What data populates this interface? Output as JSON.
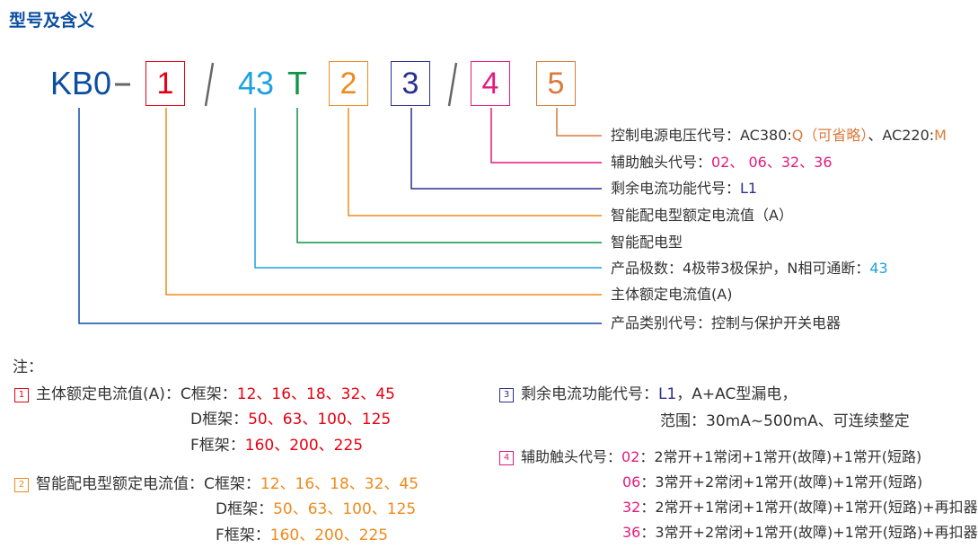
{
  "title": "型号及含义",
  "colors": {
    "blue": "#0b4ea2",
    "red": "#e60012",
    "cyan": "#1ea1e0",
    "green": "#0d9447",
    "orange": "#f08a1c",
    "navy": "#2b2f8e",
    "pink": "#e4197f",
    "brown": "#d97a3a",
    "text": "#333333"
  },
  "model": {
    "prefix": "KB0",
    "dash": "-",
    "slash": "/",
    "poles": "43",
    "type": "T",
    "box1": "1",
    "box2": "2",
    "box3": "3",
    "box4": "4",
    "box5": "5"
  },
  "descriptions": {
    "d5": {
      "label": "控制电源电压代号：AC380:",
      "q": "Q（可省略）",
      "mid": "、AC220:",
      "m": "M"
    },
    "d4": {
      "label": "辅助触头代号：",
      "values": "02、 06、32、36"
    },
    "d3": {
      "label": "剩余电流功能代号：",
      "value": "L1"
    },
    "d2": "智能配电型额定电流值（A）",
    "dT": "智能配电型",
    "d43": {
      "label": "产品极数：4极带3极保护，N相可通断：",
      "value": "43"
    },
    "d1": "主体额定电流值(A)",
    "dKB0": "产品类别代号：控制与保护开关电器"
  },
  "notes": {
    "heading": "注：",
    "n1": {
      "num": "1",
      "label": "主体额定电流值(A)：C框架：",
      "c": "12、16、18、32、45",
      "d_label": "D框架：",
      "d": "50、63、100、125",
      "f_label": "F框架：",
      "f": "160、200、225"
    },
    "n2": {
      "num": "2",
      "label": "智能配电型额定电流值：C框架：",
      "c": "12、16、18、32、45",
      "d_label": "D框架：",
      "d": "50、63、100、125",
      "f_label": "F框架：",
      "f": "160、200、225"
    },
    "n3": {
      "num": "3",
      "label": "剩余电流功能代号：",
      "value": "L1",
      "rest": "，A+AC型漏电，",
      "range": "范围：30mA~500mA、可连续整定"
    },
    "n4": {
      "num": "4",
      "label": "辅助触头代号：",
      "items": [
        {
          "code": "02",
          "text": "：2常开+1常闭+1常开(故障)+1常开(短路)"
        },
        {
          "code": "06",
          "text": "：3常开+2常闭+1常开(故障)+1常开(短路)"
        },
        {
          "code": "32",
          "text": "：2常开+1常闭+1常开(故障)+1常开(短路)+再扣器"
        },
        {
          "code": "36",
          "text": "：3常开+2常闭+1常开(故障)+1常开(短路)+再扣器"
        }
      ]
    }
  }
}
